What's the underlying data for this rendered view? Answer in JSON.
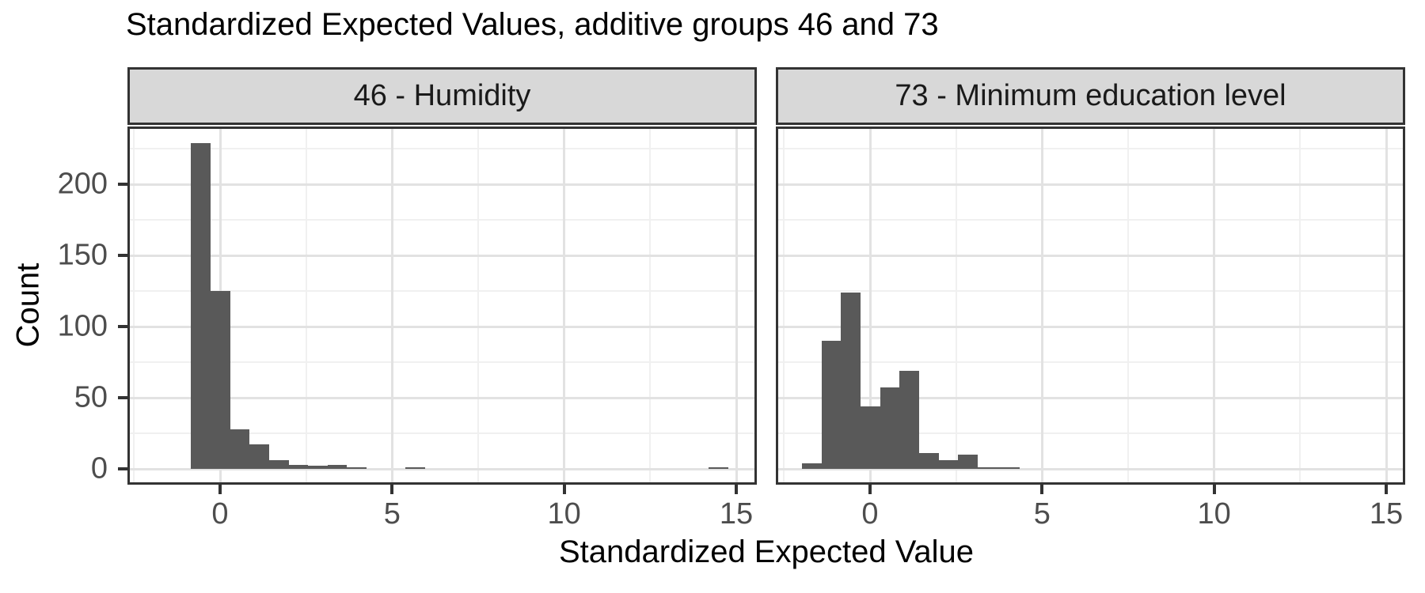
{
  "title": "Standardized Expected Values, additive groups 46 and 73",
  "colors": {
    "bar": "#595959",
    "strip_bg": "#d8d8d8",
    "panel_border": "#333333",
    "grid_major": "#e2e2e2",
    "grid_minor": "#f0f0f0",
    "tick_label": "#4d4d4d",
    "title_text": "#000000",
    "strip_text": "#1a1a1a"
  },
  "chart_data": {
    "type": "bar",
    "subtype": "faceted_histogram",
    "title": "Standardized Expected Values, additive groups 46 and 73",
    "xlabel": "Standardized Expected Value",
    "ylabel": "Count",
    "legend": "none",
    "grid": "on",
    "x_ticks": [
      0,
      5,
      10,
      15
    ],
    "x_tick_labels": [
      "0",
      "5",
      "10",
      "15"
    ],
    "x_minor_ticks": [
      -2.5,
      2.5,
      7.5,
      12.5
    ],
    "y_ticks": [
      0,
      50,
      100,
      150,
      200
    ],
    "y_tick_labels": [
      "0",
      "50",
      "100",
      "150",
      "200"
    ],
    "y_minor_ticks": [
      25,
      75,
      125,
      175,
      225
    ],
    "xlim": [
      -2.7,
      15.6
    ],
    "ylim": [
      -11,
      241
    ],
    "binwidth": 0.567,
    "facets": [
      {
        "label": "46 - Humidity",
        "bins": [
          {
            "x0": -0.85,
            "x1": -0.28,
            "count": 229
          },
          {
            "x0": -0.28,
            "x1": 0.29,
            "count": 125
          },
          {
            "x0": 0.29,
            "x1": 0.86,
            "count": 28
          },
          {
            "x0": 0.86,
            "x1": 1.42,
            "count": 17
          },
          {
            "x0": 1.42,
            "x1": 1.99,
            "count": 6
          },
          {
            "x0": 1.99,
            "x1": 2.56,
            "count": 3
          },
          {
            "x0": 2.56,
            "x1": 3.12,
            "count": 2
          },
          {
            "x0": 3.12,
            "x1": 3.69,
            "count": 3
          },
          {
            "x0": 3.69,
            "x1": 4.26,
            "count": 1
          },
          {
            "x0": 5.39,
            "x1": 5.96,
            "count": 1
          },
          {
            "x0": 14.2,
            "x1": 14.77,
            "count": 1
          }
        ]
      },
      {
        "label": "73 - Minimum education level",
        "bins": [
          {
            "x0": -1.98,
            "x1": -1.41,
            "count": 4
          },
          {
            "x0": -1.41,
            "x1": -0.85,
            "count": 90
          },
          {
            "x0": -0.85,
            "x1": -0.28,
            "count": 124
          },
          {
            "x0": -0.28,
            "x1": 0.29,
            "count": 44
          },
          {
            "x0": 0.29,
            "x1": 0.86,
            "count": 57
          },
          {
            "x0": 0.86,
            "x1": 1.42,
            "count": 69
          },
          {
            "x0": 1.42,
            "x1": 1.99,
            "count": 11
          },
          {
            "x0": 1.99,
            "x1": 2.56,
            "count": 6
          },
          {
            "x0": 2.56,
            "x1": 3.12,
            "count": 10
          },
          {
            "x0": 3.12,
            "x1": 3.69,
            "count": 1
          },
          {
            "x0": 3.69,
            "x1": 4.35,
            "count": 1
          }
        ]
      }
    ]
  }
}
